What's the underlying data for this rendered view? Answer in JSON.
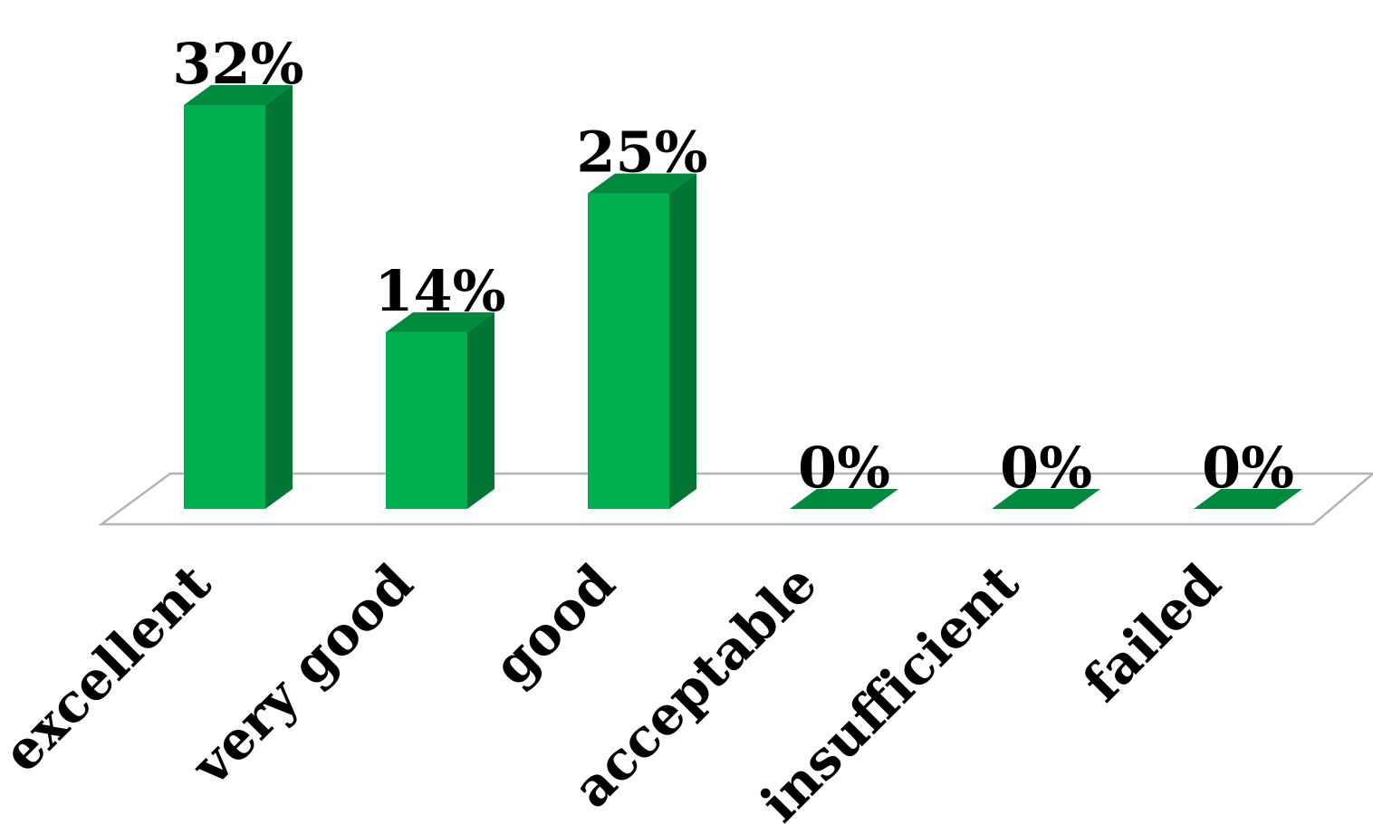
{
  "chart_data": {
    "type": "bar",
    "categories": [
      "excellent",
      "very good",
      "good",
      "acceptable",
      "insufficient",
      "failed"
    ],
    "values": [
      32,
      14,
      25,
      0,
      0,
      0
    ],
    "data_labels": [
      "32%",
      "14%",
      "25%",
      "0%",
      "0%",
      "0%"
    ],
    "unit": "%",
    "ylim": [
      0,
      32
    ],
    "grid": false,
    "legend": "none",
    "style": "3d-column",
    "colors": {
      "bar_front": "#00b04f",
      "bar_side": "#007534",
      "bar_top": "#008a3e",
      "floor_stroke": "#b4b4b4",
      "text": "#000000"
    }
  }
}
